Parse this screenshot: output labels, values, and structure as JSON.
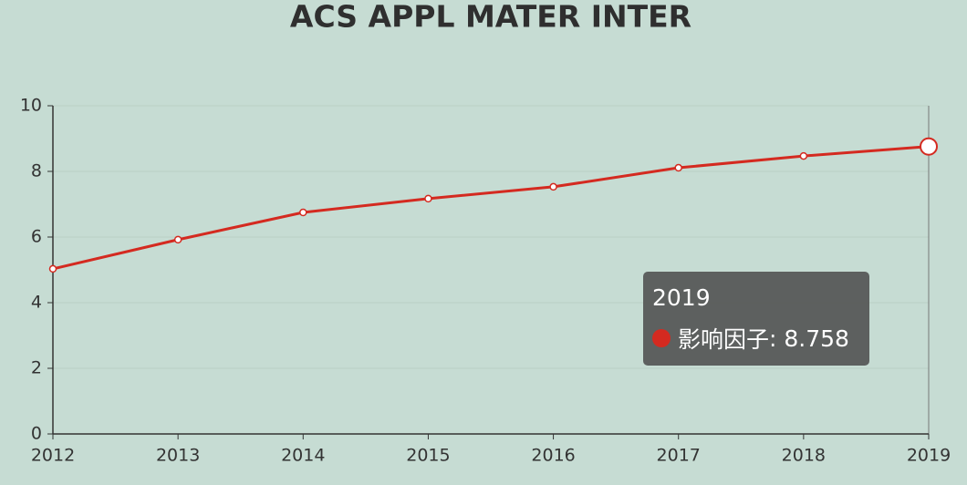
{
  "chart_data": {
    "type": "line",
    "title": "ACS APPL MATER INTER",
    "categories": [
      "2012",
      "2013",
      "2014",
      "2015",
      "2016",
      "2017",
      "2018",
      "2019"
    ],
    "series": [
      {
        "name": "影响因子",
        "color": "#d42a20",
        "values": [
          5.03,
          5.92,
          6.75,
          7.17,
          7.53,
          8.11,
          8.47,
          8.758
        ]
      }
    ],
    "ylim": [
      0,
      10
    ],
    "yticks": [
      0,
      2,
      4,
      6,
      8,
      10
    ],
    "grid": true,
    "tooltip_index": 7
  }
}
